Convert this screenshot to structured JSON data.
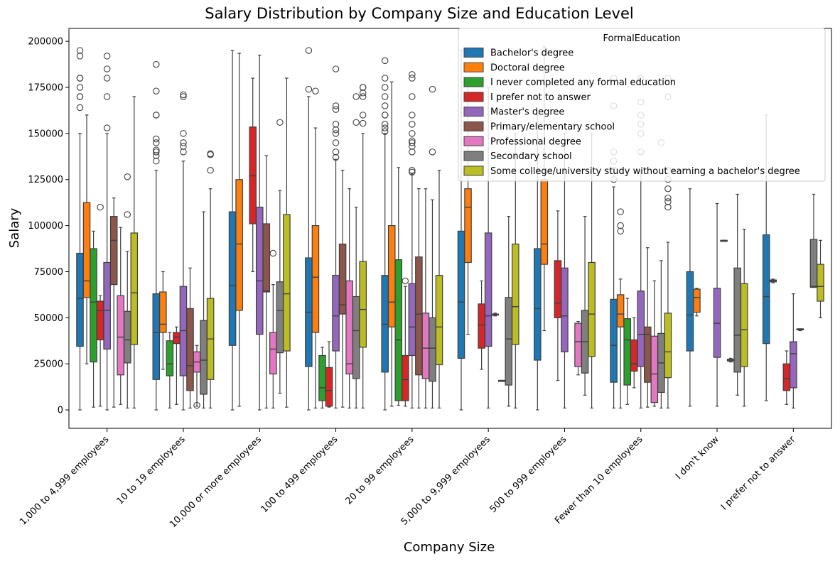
{
  "chart_data": {
    "type": "box",
    "title": "Salary Distribution by Company Size and Education Level",
    "xlabel": "Company Size",
    "ylabel": "Salary",
    "ylim": [
      -10000,
      207000
    ],
    "yticks": [
      0,
      25000,
      50000,
      75000,
      100000,
      125000,
      150000,
      175000,
      200000
    ],
    "grid": false,
    "legend": {
      "title": "FormalEducation",
      "placement": "top-right"
    },
    "categories": [
      "1,000 to 4,999 employees",
      "10 to 19 employees",
      "10,000 or more employees",
      "100 to 499 employees",
      "20 to 99 employees",
      "5,000 to 9,999 employees",
      "500 to 999 employees",
      "Fewer than 10 employees",
      "I don't know",
      "I prefer not to answer"
    ],
    "series": [
      {
        "name": "Bachelor's degree",
        "color": "#1f77b4",
        "boxes": [
          {
            "min": 0,
            "q1": 34500,
            "median": 60500,
            "q3": 85000,
            "max": 150000,
            "outliers": [
              164000,
              170000,
              170000,
              175000,
              180000,
              180000,
              192000,
              195000
            ]
          },
          {
            "min": 0,
            "q1": 16500,
            "median": 42000,
            "q3": 63000,
            "max": 130000,
            "outliers": [
              135000,
              138000,
              140000,
              141000,
              145000,
              147000,
              160000,
              160000,
              173000,
              187500
            ]
          },
          {
            "min": 0,
            "q1": 35000,
            "median": 67500,
            "q3": 107500,
            "max": 195000,
            "outliers": []
          },
          {
            "min": 0,
            "q1": 23500,
            "median": 53000,
            "q3": 82500,
            "max": 170000,
            "outliers": [
              174000,
              195000
            ]
          },
          {
            "min": 0,
            "q1": 20500,
            "median": 46500,
            "q3": 73000,
            "max": 150000,
            "outliers": [
              151000,
              153000,
              155000,
              160000,
              160000,
              165000,
              170000,
              175000,
              180000,
              189500
            ]
          },
          {
            "min": 0,
            "q1": 28000,
            "median": 58500,
            "q3": 97000,
            "max": 195000,
            "outliers": []
          },
          {
            "min": 0,
            "q1": 27000,
            "median": 55000,
            "q3": 87500,
            "max": 160000,
            "outliers": []
          },
          {
            "min": 1000,
            "q1": 15000,
            "median": 35000,
            "q3": 60000,
            "max": 121000,
            "outliers": [
              125000,
              130000,
              135000,
              140000,
              165000,
              180000
            ]
          },
          {
            "min": 2000,
            "q1": 32000,
            "median": 51500,
            "q3": 75000,
            "max": 120000,
            "outliers": []
          },
          {
            "min": 5000,
            "q1": 36000,
            "median": 61500,
            "q3": 95000,
            "max": 160000,
            "outliers": []
          }
        ]
      },
      {
        "name": "Doctoral degree",
        "color": "#ff7f0e",
        "boxes": [
          {
            "min": 25000,
            "q1": 61000,
            "median": 70000,
            "q3": 112500,
            "max": 160000,
            "outliers": []
          },
          {
            "min": 22000,
            "q1": 42000,
            "median": 46500,
            "q3": 64000,
            "max": 75000,
            "outliers": []
          },
          {
            "min": 2000,
            "q1": 54000,
            "median": 90000,
            "q3": 125000,
            "max": 193500,
            "outliers": []
          },
          {
            "min": 1000,
            "q1": 42000,
            "median": 72000,
            "q3": 100000,
            "max": 153000,
            "outliers": [
              173000
            ]
          },
          {
            "min": 2000,
            "q1": 45000,
            "median": 58500,
            "q3": 100000,
            "max": 178000,
            "outliers": []
          },
          {
            "min": 41000,
            "q1": 80000,
            "median": 110000,
            "q3": 120000,
            "max": 180000,
            "outliers": []
          },
          {
            "min": 43000,
            "q1": 79000,
            "median": 90000,
            "q3": 125000,
            "max": 197000,
            "outliers": []
          },
          {
            "min": 1000,
            "q1": 45000,
            "median": 52000,
            "q3": 62500,
            "max": 71000,
            "outliers": [
              97000,
              100000,
              107500
            ]
          },
          {
            "min": 51000,
            "q1": 53000,
            "median": 61000,
            "q3": 65500,
            "max": 66000,
            "outliers": []
          },
          {
            "min": 69000,
            "q1": 69500,
            "median": 70000,
            "q3": 70500,
            "max": 71000,
            "outliers": []
          }
        ]
      },
      {
        "name": "I never completed any formal education",
        "color": "#2ca02c",
        "boxes": [
          {
            "min": 1500,
            "q1": 26000,
            "median": 58500,
            "q3": 87500,
            "max": 97000,
            "outliers": []
          },
          {
            "min": 1000,
            "q1": 18500,
            "median": 25000,
            "q3": 37500,
            "max": 42000,
            "outliers": []
          },
          null,
          {
            "min": 1000,
            "q1": 5000,
            "median": 12000,
            "q3": 29500,
            "max": 34000,
            "outliers": []
          },
          {
            "min": 2500,
            "q1": 5000,
            "median": 38000,
            "q3": 81500,
            "max": 131500,
            "outliers": []
          },
          null,
          null,
          {
            "min": 3000,
            "q1": 13500,
            "median": 38000,
            "q3": 49500,
            "max": 60500,
            "outliers": []
          },
          null,
          null
        ]
      },
      {
        "name": "I prefer not to answer",
        "color": "#d62728",
        "boxes": [
          {
            "min": 2000,
            "q1": 38000,
            "median": 54000,
            "q3": 59000,
            "max": 62000,
            "outliers": [
              110000
            ]
          },
          {
            "min": 3000,
            "q1": 36000,
            "median": 39500,
            "q3": 42000,
            "max": 45000,
            "outliers": []
          },
          {
            "min": 75000,
            "q1": 101000,
            "median": 127000,
            "q3": 153500,
            "max": 180000,
            "outliers": []
          },
          {
            "min": 1500,
            "q1": 2000,
            "median": 10500,
            "q3": 23000,
            "max": 37000,
            "outliers": []
          },
          {
            "min": 2000,
            "q1": 5000,
            "median": 16500,
            "q3": 29500,
            "max": 67000,
            "outliers": [
              70000
            ]
          },
          {
            "min": 22000,
            "q1": 33500,
            "median": 46000,
            "q3": 57500,
            "max": 70000,
            "outliers": []
          },
          {
            "min": 16000,
            "q1": 50000,
            "median": 58000,
            "q3": 81000,
            "max": 108000,
            "outliers": []
          },
          {
            "min": 12000,
            "q1": 21000,
            "median": 25000,
            "q3": 38000,
            "max": 50000,
            "outliers": []
          },
          null,
          {
            "min": 3000,
            "q1": 10500,
            "median": 17000,
            "q3": 25000,
            "max": 32000,
            "outliers": []
          }
        ]
      },
      {
        "name": "Master's degree",
        "color": "#9467bd",
        "boxes": [
          {
            "min": 0,
            "q1": 33000,
            "median": 54000,
            "q3": 80000,
            "max": 150000,
            "outliers": [
              153000,
              170000,
              180000,
              185000,
              192000
            ]
          },
          {
            "min": 0,
            "q1": 18500,
            "median": 43000,
            "q3": 67000,
            "max": 135000,
            "outliers": [
              140000,
              143000,
              145000,
              150000,
              170000,
              171000
            ]
          },
          {
            "min": 0,
            "q1": 41000,
            "median": 70000,
            "q3": 110000,
            "max": 192500,
            "outliers": []
          },
          {
            "min": 1000,
            "q1": 32000,
            "median": 51000,
            "q3": 73000,
            "max": 136000,
            "outliers": [
              137000,
              140000,
              145000,
              150000,
              152000,
              155000,
              163000,
              165000,
              185000
            ]
          },
          {
            "min": 1000,
            "q1": 29500,
            "median": 45000,
            "q3": 68500,
            "max": 128000,
            "outliers": [
              129000,
              130000,
              140000,
              143000,
              145000,
              146000,
              150000,
              155000,
              160000,
              170000,
              180000,
              182000
            ]
          },
          {
            "min": 1000,
            "q1": 34500,
            "median": 51000,
            "q3": 96000,
            "max": 175000,
            "outliers": []
          },
          {
            "min": 1000,
            "q1": 31500,
            "median": 51000,
            "q3": 77000,
            "max": 150000,
            "outliers": []
          },
          {
            "min": 1000,
            "q1": 23500,
            "median": 41000,
            "q3": 64500,
            "max": 130000,
            "outliers": [
              140000,
              150000,
              155000,
              160000,
              167000,
              180000
            ]
          },
          {
            "min": 2000,
            "q1": 28500,
            "median": 47000,
            "q3": 66000,
            "max": 112000,
            "outliers": []
          },
          {
            "min": 1000,
            "q1": 12000,
            "median": 30500,
            "q3": 37000,
            "max": 63000,
            "outliers": []
          }
        ]
      },
      {
        "name": "Primary/elementary school",
        "color": "#8c564b",
        "boxes": [
          {
            "min": 1500,
            "q1": 68000,
            "median": 92000,
            "q3": 105000,
            "max": 115000,
            "outliers": []
          },
          {
            "min": 1000,
            "q1": 10500,
            "median": 24000,
            "q3": 55000,
            "max": 77000,
            "outliers": []
          },
          {
            "min": 1000,
            "q1": 64000,
            "median": 64500,
            "q3": 101000,
            "max": 138000,
            "outliers": []
          },
          {
            "min": 1500,
            "q1": 52000,
            "median": 57000,
            "q3": 90000,
            "max": 130000,
            "outliers": []
          },
          {
            "min": 1000,
            "q1": 19000,
            "median": 52000,
            "q3": 83000,
            "max": 120000,
            "outliers": []
          },
          {
            "min": 51000,
            "q1": 51500,
            "median": 51500,
            "q3": 52000,
            "max": 52500,
            "outliers": []
          },
          null,
          {
            "min": 1500,
            "q1": 15000,
            "median": 41000,
            "q3": 45000,
            "max": 88000,
            "outliers": []
          },
          {
            "min": 92000,
            "q1": 92000,
            "median": 92000,
            "q3": 92000,
            "max": 92000,
            "outliers": []
          },
          {
            "min": 43000,
            "q1": 43500,
            "median": 43500,
            "q3": 44000,
            "max": 44000,
            "outliers": []
          }
        ]
      },
      {
        "name": "Professional degree",
        "color": "#e377c2",
        "boxes": [
          {
            "min": 3000,
            "q1": 19000,
            "median": 39500,
            "q3": 62000,
            "max": 99000,
            "outliers": []
          },
          {
            "min": 2000,
            "q1": 20500,
            "median": 26000,
            "q3": 31500,
            "max": 35000,
            "outliers": [
              2500
            ]
          },
          {
            "min": 1000,
            "q1": 19500,
            "median": 33000,
            "q3": 42000,
            "max": 68000,
            "outliers": [
              85000
            ]
          },
          {
            "min": 1000,
            "q1": 19500,
            "median": 25000,
            "q3": 70000,
            "max": 120000,
            "outliers": []
          },
          {
            "min": 1000,
            "q1": 17000,
            "median": 33500,
            "q3": 52500,
            "max": 120000,
            "outliers": []
          },
          {
            "min": 16000,
            "q1": 16000,
            "median": 16000,
            "q3": 16000,
            "max": 16000,
            "outliers": []
          },
          {
            "min": 19000,
            "q1": 23500,
            "median": 37000,
            "q3": 47000,
            "max": 48000,
            "outliers": []
          },
          {
            "min": 2000,
            "q1": 4000,
            "median": 19500,
            "q3": 40000,
            "max": 70000,
            "outliers": []
          },
          {
            "min": 26000,
            "q1": 26500,
            "median": 27000,
            "q3": 27500,
            "max": 28000,
            "outliers": []
          },
          null
        ]
      },
      {
        "name": "Secondary school",
        "color": "#7f7f7f",
        "boxes": [
          {
            "min": 1000,
            "q1": 25500,
            "median": 38000,
            "q3": 53500,
            "max": 86000,
            "outliers": [
              106000,
              126500
            ]
          },
          {
            "min": 1000,
            "q1": 8500,
            "median": 27000,
            "q3": 48500,
            "max": 107500,
            "outliers": []
          },
          {
            "min": 9000,
            "q1": 31000,
            "median": 54000,
            "q3": 69500,
            "max": 119000,
            "outliers": [
              156000
            ]
          },
          {
            "min": 1000,
            "q1": 17000,
            "median": 43000,
            "q3": 61500,
            "max": 110000,
            "outliers": [
              156000,
              170000
            ]
          },
          {
            "min": 1000,
            "q1": 15500,
            "median": 33500,
            "q3": 50000,
            "max": 114000,
            "outliers": [
              140000,
              174000
            ]
          },
          {
            "min": 2000,
            "q1": 13500,
            "median": 38500,
            "q3": 61000,
            "max": 105000,
            "outliers": []
          },
          {
            "min": 8000,
            "q1": 20000,
            "median": 37000,
            "q3": 54000,
            "max": 105000,
            "outliers": []
          },
          {
            "min": 1000,
            "q1": 9500,
            "median": 25500,
            "q3": 41500,
            "max": 81000,
            "outliers": [
              145000
            ]
          },
          {
            "min": 8000,
            "q1": 20500,
            "median": 40500,
            "q3": 77000,
            "max": 117000,
            "outliers": []
          },
          {
            "min": 66500,
            "q1": 66500,
            "median": 67000,
            "q3": 92500,
            "max": 117000,
            "outliers": []
          }
        ]
      },
      {
        "name": "Some college/university study without earning a bachelor's degree",
        "color": "#bcbd22",
        "boxes": [
          {
            "min": 1000,
            "q1": 35500,
            "median": 63500,
            "q3": 96000,
            "max": 170000,
            "outliers": []
          },
          {
            "min": 1000,
            "q1": 16500,
            "median": 38500,
            "q3": 60500,
            "max": 120000,
            "outliers": [
              130000,
              138500,
              139000
            ]
          },
          {
            "min": 1500,
            "q1": 32000,
            "median": 63000,
            "q3": 106000,
            "max": 180000,
            "outliers": []
          },
          {
            "min": 1000,
            "q1": 34000,
            "median": 54500,
            "q3": 80500,
            "max": 150000,
            "outliers": [
              155500,
              160000,
              170000,
              172000,
              175000,
              175000
            ]
          },
          {
            "min": 1000,
            "q1": 24500,
            "median": 45000,
            "q3": 73000,
            "max": 130000,
            "outliers": []
          },
          {
            "min": 1000,
            "q1": 35500,
            "median": 56000,
            "q3": 90000,
            "max": 150000,
            "outliers": []
          },
          {
            "min": 1000,
            "q1": 29000,
            "median": 52000,
            "q3": 80000,
            "max": 150000,
            "outliers": []
          },
          {
            "min": 1000,
            "q1": 17500,
            "median": 31500,
            "q3": 52500,
            "max": 91000,
            "outliers": [
              110000,
              113000,
              115000,
              120000,
              125000,
              130000,
              170000,
              180000
            ]
          },
          {
            "min": 2000,
            "q1": 23500,
            "median": 43500,
            "q3": 68500,
            "max": 98000,
            "outliers": []
          },
          {
            "min": 50000,
            "q1": 59000,
            "median": 67000,
            "q3": 79000,
            "max": 92000,
            "outliers": []
          }
        ]
      }
    ]
  }
}
